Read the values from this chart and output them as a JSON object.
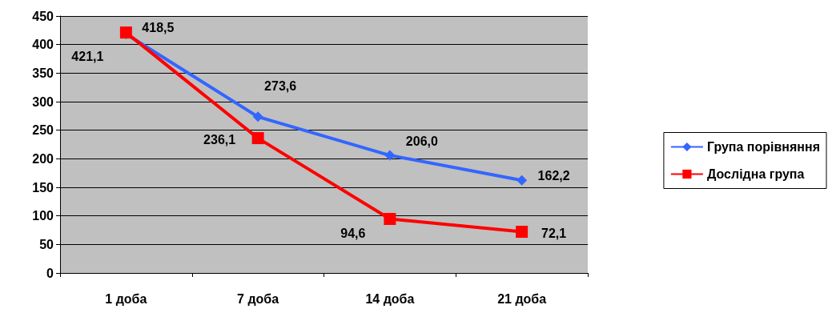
{
  "chart_data": {
    "type": "line",
    "categories": [
      "1 доба",
      "7 доба",
      "14 доба",
      "21 доба"
    ],
    "series": [
      {
        "name": "Група порівняння",
        "color": "#3366ff",
        "marker": "diamond",
        "values": [
          418.5,
          273.6,
          206.0,
          162.2
        ],
        "value_labels": [
          "418,5",
          "273,6",
          "206,0",
          "162,2"
        ]
      },
      {
        "name": "Дослідна група",
        "color": "#ff0000",
        "marker": "square",
        "values": [
          421.1,
          236.1,
          94.6,
          72.1
        ],
        "value_labels": [
          "421,1",
          "236,1",
          "94,6",
          "72,1"
        ]
      }
    ],
    "ylim": [
      0,
      450
    ],
    "yticks": [
      0,
      50,
      100,
      150,
      200,
      250,
      300,
      350,
      400,
      450
    ],
    "grid": "y",
    "legend": "right",
    "line_style": "solid"
  }
}
